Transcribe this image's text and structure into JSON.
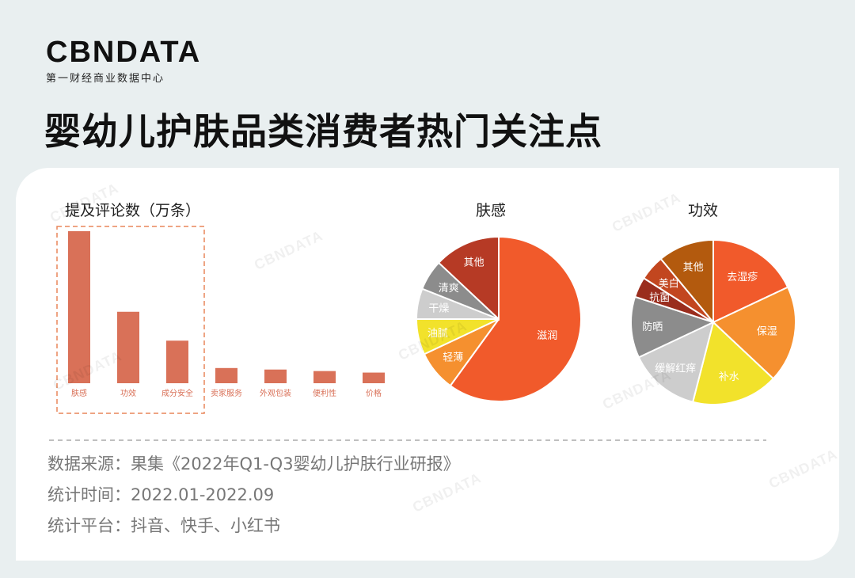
{
  "brand": {
    "logo": "CBNDATA",
    "tagline": "第一财经商业数据中心"
  },
  "title": "婴幼儿护肤品类消费者热门关注点",
  "chart_data": [
    {
      "type": "bar",
      "title": "提及评论数（万条）",
      "categories": [
        "肤感",
        "功效",
        "成分安全",
        "卖家服务",
        "外观包装",
        "便利性",
        "价格"
      ],
      "values": [
        100,
        47,
        28,
        10,
        9,
        8,
        7
      ],
      "ylim": [
        0,
        100
      ],
      "highlighted_categories": [
        "肤感",
        "功效",
        "成分安全"
      ],
      "color": "#d97158",
      "grid": false
    },
    {
      "type": "pie",
      "title": "肤感",
      "labels": [
        "滋润",
        "轻薄",
        "油腻",
        "干燥",
        "清爽",
        "其他"
      ],
      "values": [
        60,
        8,
        7,
        6,
        6,
        13
      ],
      "colors": [
        "#f15a2b",
        "#f5902f",
        "#f2e22b",
        "#cdcdcd",
        "#8c8c8c",
        "#b63a25"
      ]
    },
    {
      "type": "pie",
      "title": "功效",
      "labels": [
        "去湿疹",
        "保湿",
        "补水",
        "缓解红痒",
        "防晒",
        "抗菌",
        "美白",
        "其他"
      ],
      "values": [
        18,
        19,
        17,
        14,
        12,
        4,
        5,
        11
      ],
      "colors": [
        "#f15a2b",
        "#f5902f",
        "#f2e22b",
        "#cdcdcd",
        "#8c8c8c",
        "#9a2d1d",
        "#c2461f",
        "#b35a0e"
      ]
    }
  ],
  "footer": {
    "source": "数据来源：果集《2022年Q1-Q3婴幼儿护肤行业研报》",
    "period": "统计时间：2022.01-2022.09",
    "platform": "统计平台：抖音、快手、小红书"
  },
  "watermark": "CBNDATA"
}
